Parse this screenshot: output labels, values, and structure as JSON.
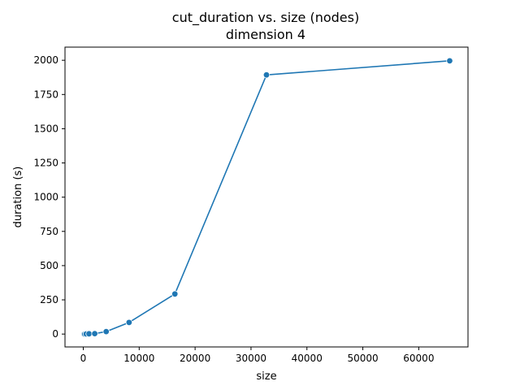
{
  "chart_data": {
    "type": "line",
    "title": "cut_duration vs. size (nodes)",
    "subtitle": "dimension 4",
    "xlabel": "size",
    "ylabel": "duration (s)",
    "xlim": [
      -3270,
      68810
    ],
    "ylim": [
      -94,
      2096
    ],
    "xticks": [
      0,
      10000,
      20000,
      30000,
      40000,
      50000,
      60000
    ],
    "yticks": [
      0,
      250,
      500,
      750,
      1000,
      1250,
      1500,
      1750,
      2000
    ],
    "grid": false,
    "series": [
      {
        "color": "#1f77b4",
        "marker": "circle",
        "x": [
          16,
          32,
          64,
          128,
          256,
          512,
          1024,
          2048,
          4096,
          8192,
          16384,
          32768,
          65536
        ],
        "y": [
          0,
          0,
          0,
          0,
          0,
          1,
          2,
          3,
          18,
          85,
          293,
          1893,
          1996
        ]
      }
    ]
  }
}
